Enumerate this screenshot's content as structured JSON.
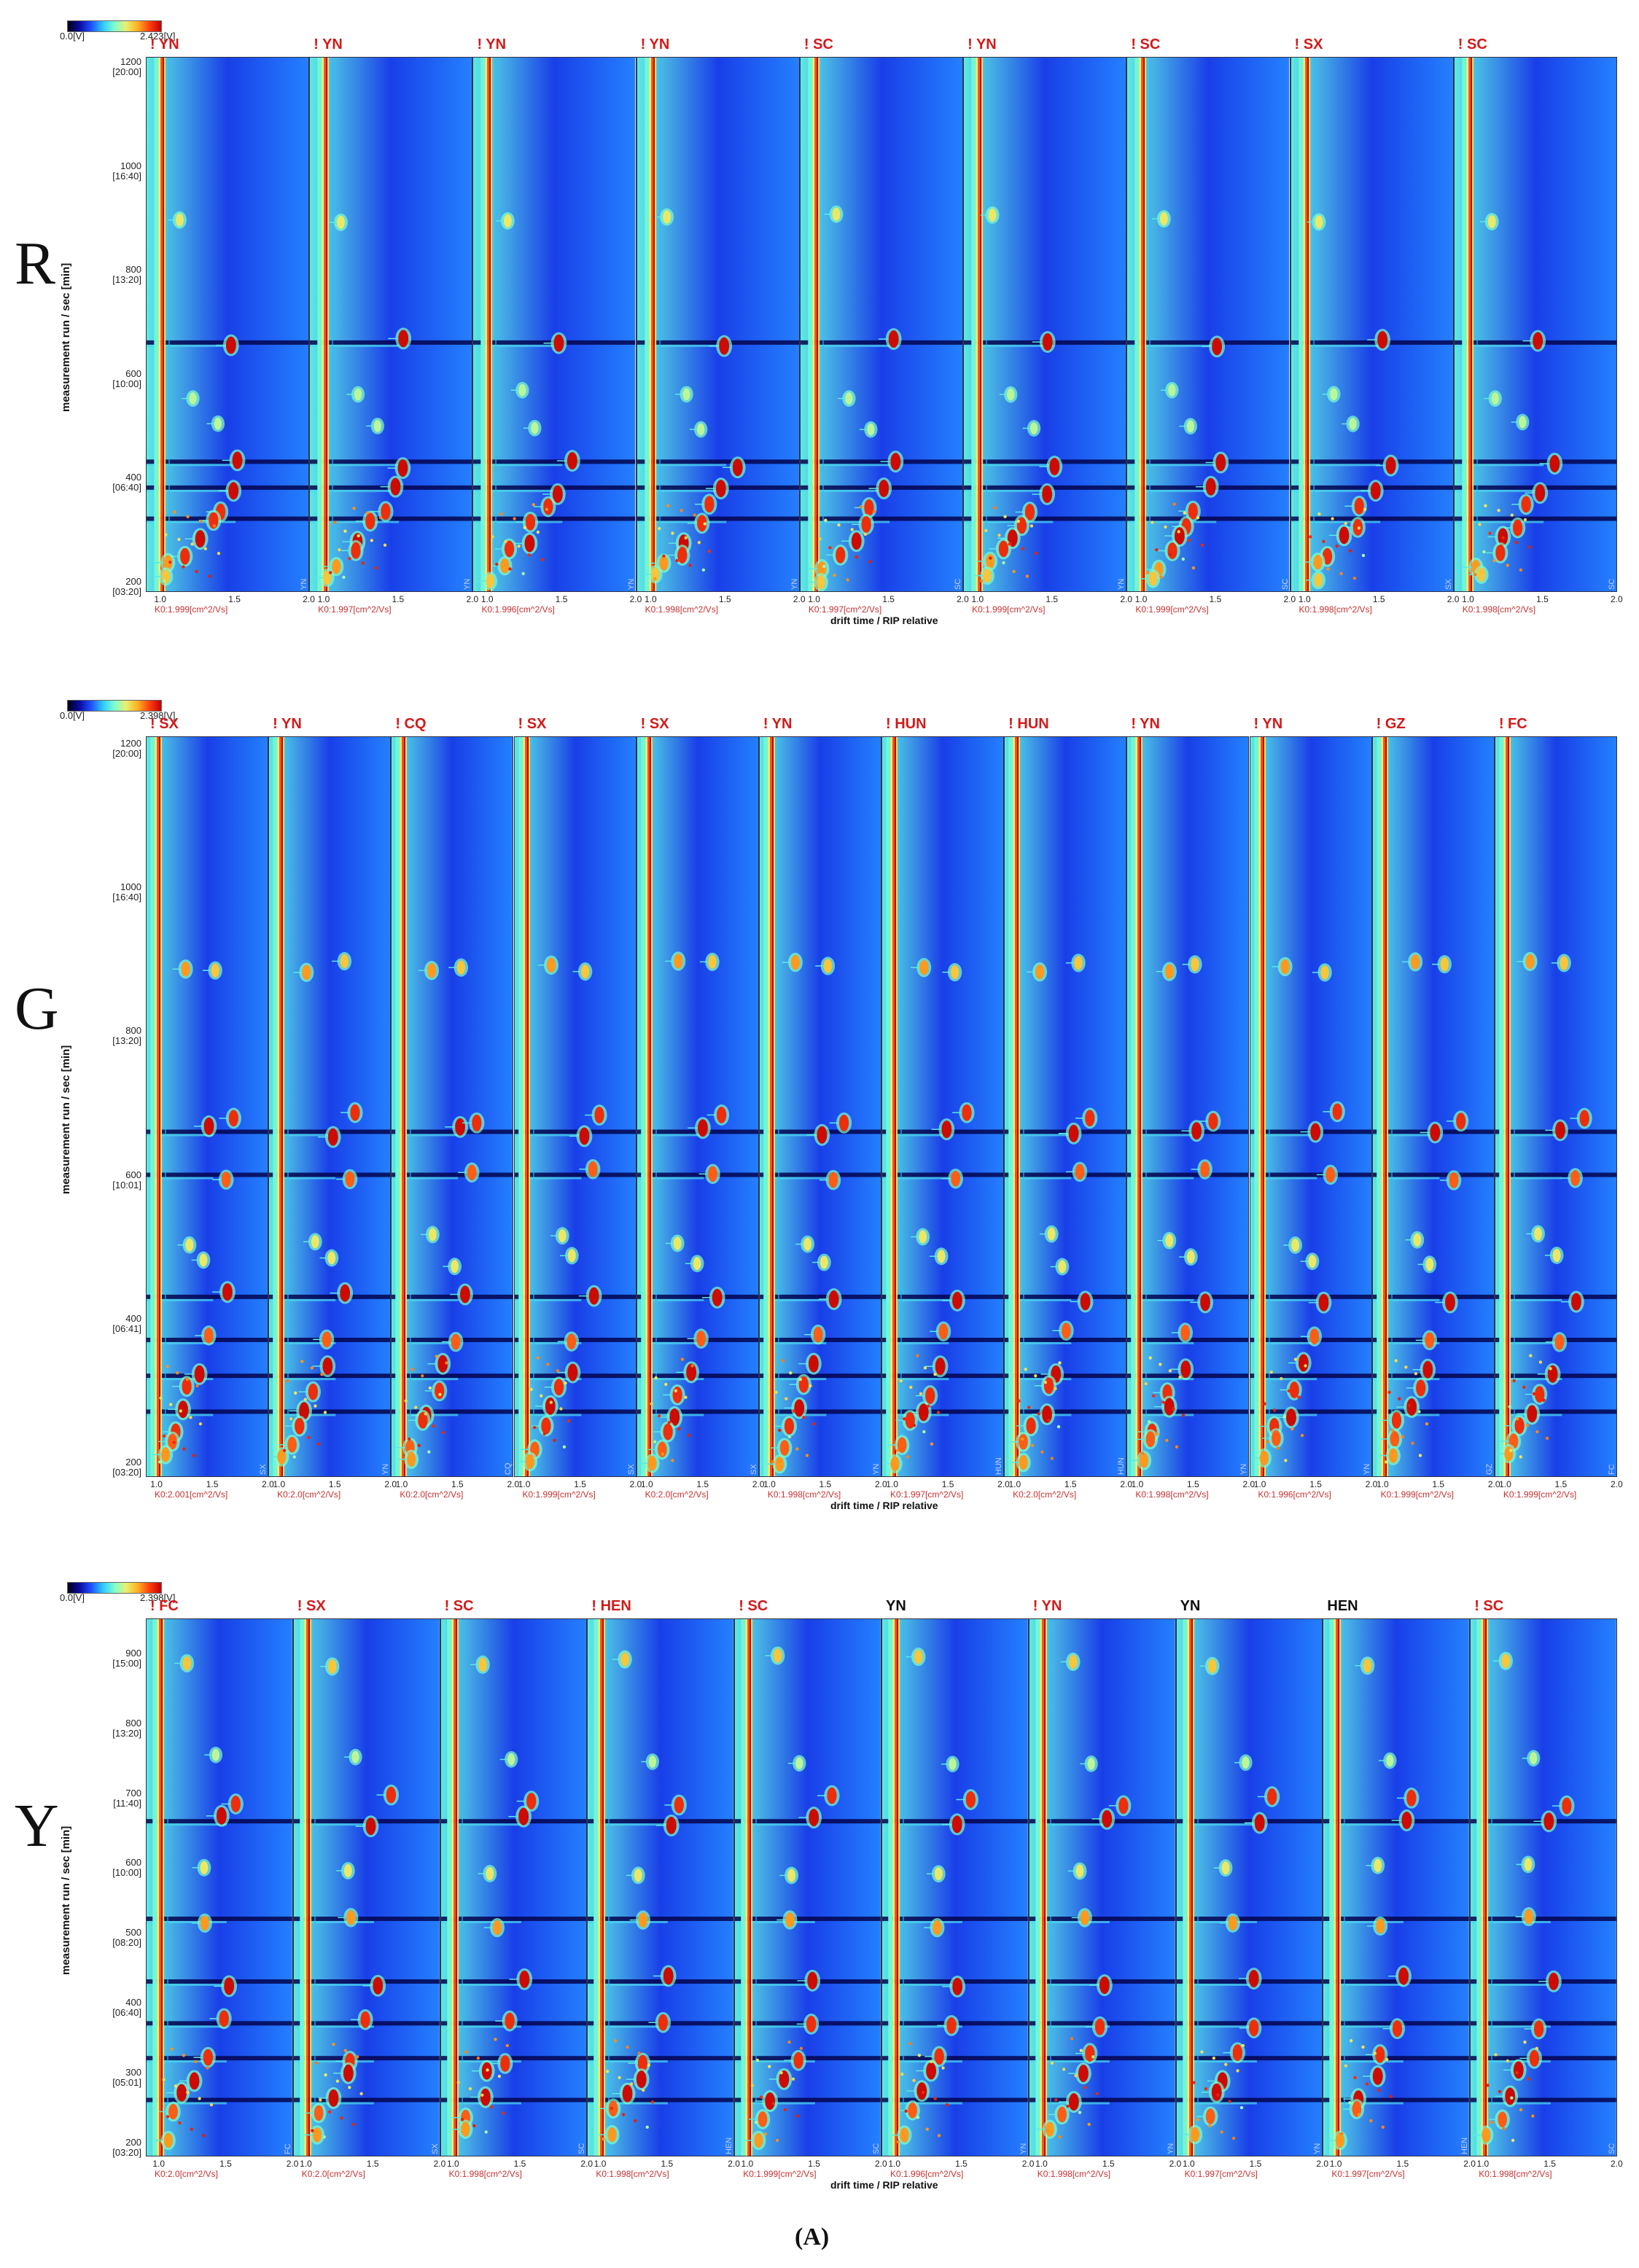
{
  "figure_label": "(A)",
  "x_axis_label": "drift time / RIP relative",
  "y_axis_label": "measurement run / sec [min]",
  "x_ticks": [
    "1.0",
    "1.5",
    "2.0"
  ],
  "colorscale": {
    "stops": [
      "#000016",
      "#0a0aa0",
      "#1e50ff",
      "#2ec8ff",
      "#7dffd0",
      "#e8f070",
      "#ffb020",
      "#ff4010",
      "#c40000"
    ]
  },
  "chart_data": [
    {
      "type": "heatmap",
      "row_label": "R",
      "colorbar": {
        "min_label": "0.0[V]",
        "max_label": "2.423[V]"
      },
      "y_ticks": [
        {
          "value": "1200",
          "sub": "[20:00]"
        },
        {
          "value": "1000",
          "sub": "[16:40]"
        },
        {
          "value": "800",
          "sub": "[13:20]"
        },
        {
          "value": "600",
          "sub": "[10:00]"
        },
        {
          "value": "400",
          "sub": "[06:40]"
        },
        {
          "value": "200",
          "sub": "[03:20]"
        }
      ],
      "ylim": [
        180,
        1210
      ],
      "xlim": [
        0.9,
        2.0
      ],
      "panels": [
        {
          "title": "! YN",
          "corner": "YN",
          "k0": "K0:1.999[cm^2/Vs]"
        },
        {
          "title": "! YN",
          "corner": "YN",
          "k0": "K0:1.997[cm^2/Vs]"
        },
        {
          "title": "! YN",
          "corner": "YN",
          "k0": "K0:1.996[cm^2/Vs]"
        },
        {
          "title": "! YN",
          "corner": "YN",
          "k0": "K0:1.998[cm^2/Vs]"
        },
        {
          "title": "! SC",
          "corner": "SC",
          "k0": "K0:1.997[cm^2/Vs]"
        },
        {
          "title": "! YN",
          "corner": "YN",
          "k0": "K0:1.999[cm^2/Vs]"
        },
        {
          "title": "! SC",
          "corner": "SC",
          "k0": "K0:1.999[cm^2/Vs]"
        },
        {
          "title": "! SX",
          "corner": "SX",
          "k0": "K0:1.998[cm^2/Vs]"
        },
        {
          "title": "! SC",
          "corner": "SC",
          "k0": "K0:1.998[cm^2/Vs]"
        }
      ],
      "bands": [
        660,
        430,
        380,
        320
      ],
      "peaks": [
        {
          "x": 1.12,
          "y": 900,
          "level": 0.5
        },
        {
          "x": 1.5,
          "y": 660,
          "level": 1.0
        },
        {
          "x": 1.55,
          "y": 425,
          "level": 1.0
        },
        {
          "x": 1.5,
          "y": 375,
          "level": 1.0
        },
        {
          "x": 1.38,
          "y": 340,
          "level": 0.9
        },
        {
          "x": 1.32,
          "y": 310,
          "level": 0.9
        },
        {
          "x": 1.25,
          "y": 280,
          "level": 1.0
        },
        {
          "x": 1.18,
          "y": 255,
          "level": 0.9
        },
        {
          "x": 1.08,
          "y": 230,
          "level": 0.7
        },
        {
          "x": 1.05,
          "y": 205,
          "level": 0.6
        },
        {
          "x": 1.2,
          "y": 560,
          "level": 0.4
        },
        {
          "x": 1.35,
          "y": 500,
          "level": 0.4
        }
      ]
    },
    {
      "type": "heatmap",
      "row_label": "G",
      "colorbar": {
        "min_label": "0.0[V]",
        "max_label": "2.398[V]"
      },
      "y_ticks": [
        {
          "value": "1200",
          "sub": "[20:00]"
        },
        {
          "value": "1000",
          "sub": "[16:40]"
        },
        {
          "value": "800",
          "sub": "[13:20]"
        },
        {
          "value": "600",
          "sub": "[10:01]"
        },
        {
          "value": "400",
          "sub": "[06:41]"
        },
        {
          "value": "200",
          "sub": "[03:20]"
        }
      ],
      "ylim": [
        180,
        1210
      ],
      "xlim": [
        0.9,
        2.0
      ],
      "panels": [
        {
          "title": "! SX",
          "corner": "SX",
          "k0": "K0:2.001[cm^2/Vs]"
        },
        {
          "title": "! YN",
          "corner": "YN",
          "k0": "K0:2.0[cm^2/Vs]"
        },
        {
          "title": "! CQ",
          "corner": "CQ",
          "k0": "K0:2.0[cm^2/Vs]"
        },
        {
          "title": "! SX",
          "corner": "SX",
          "k0": "K0:1.999[cm^2/Vs]"
        },
        {
          "title": "! SX",
          "corner": "SX",
          "k0": "K0:2.0[cm^2/Vs]"
        },
        {
          "title": "! YN",
          "corner": "YN",
          "k0": "K0:1.998[cm^2/Vs]"
        },
        {
          "title": "! HUN",
          "corner": "HUN",
          "k0": "K0:1.997[cm^2/Vs]"
        },
        {
          "title": "! HUN",
          "corner": "HUN",
          "k0": "K0:2.0[cm^2/Vs]"
        },
        {
          "title": "! YN",
          "corner": "YN",
          "k0": "K0:1.998[cm^2/Vs]"
        },
        {
          "title": "! YN",
          "corner": "YN",
          "k0": "K0:1.996[cm^2/Vs]"
        },
        {
          "title": "! GZ",
          "corner": "GZ",
          "k0": "K0:1.999[cm^2/Vs]"
        },
        {
          "title": "! FC",
          "corner": "FC",
          "k0": "K0:1.999[cm^2/Vs]"
        }
      ],
      "bands": [
        660,
        600,
        430,
        370,
        320,
        270
      ],
      "peaks": [
        {
          "x": 1.25,
          "y": 890,
          "level": 0.7
        },
        {
          "x": 1.55,
          "y": 890,
          "level": 0.6
        },
        {
          "x": 1.5,
          "y": 660,
          "level": 1.0
        },
        {
          "x": 1.7,
          "y": 680,
          "level": 0.9
        },
        {
          "x": 1.6,
          "y": 600,
          "level": 0.8
        },
        {
          "x": 1.6,
          "y": 430,
          "level": 1.0
        },
        {
          "x": 1.45,
          "y": 375,
          "level": 0.8
        },
        {
          "x": 1.4,
          "y": 330,
          "level": 1.0
        },
        {
          "x": 1.3,
          "y": 300,
          "level": 0.9
        },
        {
          "x": 1.25,
          "y": 270,
          "level": 1.0
        },
        {
          "x": 1.15,
          "y": 250,
          "level": 0.9
        },
        {
          "x": 1.1,
          "y": 225,
          "level": 0.8
        },
        {
          "x": 1.05,
          "y": 205,
          "level": 0.7
        },
        {
          "x": 1.3,
          "y": 510,
          "level": 0.5
        },
        {
          "x": 1.45,
          "y": 480,
          "level": 0.5
        }
      ]
    },
    {
      "type": "heatmap",
      "row_label": "Y",
      "colorbar": {
        "min_label": "0.0[V]",
        "max_label": "2.398[V]"
      },
      "y_ticks": [
        {
          "value": "900",
          "sub": "[15:00]"
        },
        {
          "value": "800",
          "sub": "[13:20]"
        },
        {
          "value": "700",
          "sub": "[11:40]"
        },
        {
          "value": "600",
          "sub": "[10:00]"
        },
        {
          "value": "500",
          "sub": "[08:20]"
        },
        {
          "value": "400",
          "sub": "[06:40]"
        },
        {
          "value": "300",
          "sub": "[05:01]"
        },
        {
          "value": "200",
          "sub": "[03:20]"
        }
      ],
      "ylim": [
        180,
        950
      ],
      "xlim": [
        0.9,
        2.0
      ],
      "panels": [
        {
          "title": "! FC",
          "corner": "FC",
          "k0": "K0:2.0[cm^2/Vs]"
        },
        {
          "title": "! SX",
          "corner": "SX",
          "k0": "K0:2.0[cm^2/Vs]"
        },
        {
          "title": "! SC",
          "corner": "SC",
          "k0": "K0:1.998[cm^2/Vs]"
        },
        {
          "title": "! HEN",
          "corner": "HEN",
          "k0": "K0:1.998[cm^2/Vs]"
        },
        {
          "title": "! SC",
          "corner": "SC",
          "k0": "K0:1.999[cm^2/Vs]"
        },
        {
          "title": "YN",
          "corner": "YN",
          "k0": "K0:1.996[cm^2/Vs]"
        },
        {
          "title": "! YN",
          "corner": "YN",
          "k0": "K0:1.998[cm^2/Vs]"
        },
        {
          "title": "YN",
          "corner": "YN",
          "k0": "K0:1.997[cm^2/Vs]"
        },
        {
          "title": "HEN",
          "corner": "HEN",
          "k0": "K0:1.997[cm^2/Vs]"
        },
        {
          "title": "! SC",
          "corner": "SC",
          "k0": "K0:1.998[cm^2/Vs]"
        }
      ],
      "bands": [
        660,
        520,
        430,
        370,
        320,
        260
      ],
      "peaks": [
        {
          "x": 1.2,
          "y": 890,
          "level": 0.6
        },
        {
          "x": 1.6,
          "y": 690,
          "level": 0.9
        },
        {
          "x": 1.5,
          "y": 660,
          "level": 1.0
        },
        {
          "x": 1.35,
          "y": 515,
          "level": 0.7
        },
        {
          "x": 1.5,
          "y": 430,
          "level": 1.0
        },
        {
          "x": 1.45,
          "y": 370,
          "level": 0.9
        },
        {
          "x": 1.35,
          "y": 320,
          "level": 0.9
        },
        {
          "x": 1.28,
          "y": 295,
          "level": 1.0
        },
        {
          "x": 1.2,
          "y": 265,
          "level": 1.0
        },
        {
          "x": 1.12,
          "y": 240,
          "level": 0.8
        },
        {
          "x": 1.05,
          "y": 210,
          "level": 0.7
        },
        {
          "x": 1.3,
          "y": 590,
          "level": 0.5
        },
        {
          "x": 1.4,
          "y": 750,
          "level": 0.4
        }
      ]
    }
  ]
}
